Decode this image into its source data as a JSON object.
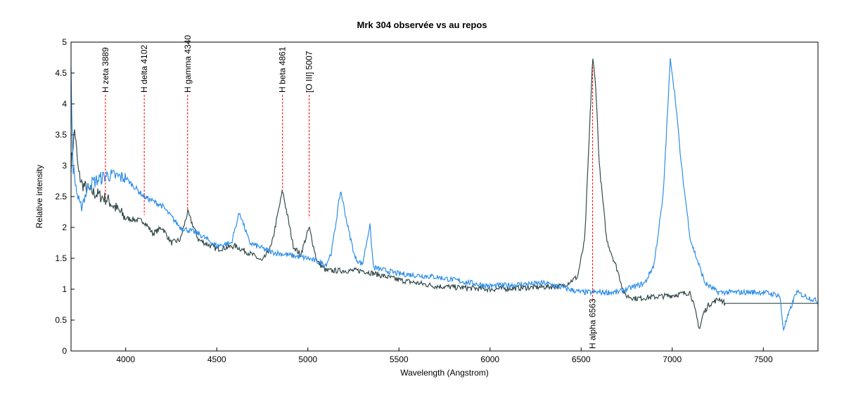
{
  "chart_data": {
    "type": "line",
    "title": "Mrk 304 observée vs au repos",
    "xlabel": "Wavelength (Angstrom)",
    "ylabel": "Relative intensity",
    "xlim": [
      3700,
      7800
    ],
    "ylim": [
      0,
      5
    ],
    "xticks": [
      4000,
      4500,
      5000,
      5500,
      6000,
      6500,
      7000,
      7500
    ],
    "yticks": [
      0,
      0.5,
      1,
      1.5,
      2,
      2.5,
      3,
      3.5,
      4,
      4.5,
      5
    ],
    "grid": false,
    "series": [
      {
        "color": "#354b4b",
        "x": [
          3700,
          3720,
          3740,
          3760,
          3800,
          3900,
          4000,
          4100,
          4150,
          4200,
          4250,
          4300,
          4340,
          4400,
          4500,
          4600,
          4700,
          4750,
          4800,
          4861,
          4920,
          4960,
          5007,
          5050,
          5100,
          5300,
          5500,
          5700,
          6000,
          6400,
          6480,
          6520,
          6545,
          6563,
          6580,
          6600,
          6640,
          6700,
          6740,
          6800,
          7000,
          7100,
          7130,
          7150,
          7170,
          7200,
          7260,
          7290,
          7800
        ],
        "y": [
          3.0,
          3.6,
          2.9,
          2.7,
          2.6,
          2.45,
          2.15,
          2.1,
          1.9,
          2.0,
          1.75,
          1.8,
          2.25,
          1.8,
          1.65,
          1.7,
          1.55,
          1.45,
          1.7,
          2.6,
          1.7,
          1.55,
          2.0,
          1.45,
          1.3,
          1.3,
          1.15,
          1.05,
          1.0,
          1.05,
          1.2,
          1.8,
          3.5,
          4.75,
          4.3,
          3.0,
          1.8,
          1.3,
          0.9,
          0.85,
          0.9,
          0.95,
          0.6,
          0.35,
          0.6,
          0.75,
          0.85,
          0.77,
          0.77
        ]
      },
      {
        "color": "#2e8ee8",
        "x": [
          3700,
          3710,
          3730,
          3750,
          3800,
          3900,
          4000,
          4100,
          4200,
          4300,
          4400,
          4500,
          4580,
          4625,
          4680,
          4800,
          4900,
          5000,
          5100,
          5130,
          5180,
          5220,
          5260,
          5300,
          5340,
          5360,
          5500,
          5700,
          6000,
          6300,
          6500,
          6700,
          6850,
          6900,
          6950,
          6990,
          7020,
          7050,
          7100,
          7180,
          7250,
          7500,
          7590,
          7610,
          7640,
          7680,
          7800
        ],
        "y": [
          4.5,
          3.0,
          2.6,
          2.3,
          2.7,
          2.85,
          2.8,
          2.5,
          2.35,
          2.0,
          1.9,
          1.7,
          1.75,
          2.25,
          1.75,
          1.6,
          1.55,
          1.5,
          1.4,
          1.6,
          2.6,
          2.0,
          1.5,
          1.4,
          2.05,
          1.35,
          1.25,
          1.2,
          1.05,
          1.1,
          0.95,
          0.95,
          1.1,
          1.4,
          2.5,
          4.75,
          4.0,
          3.0,
          1.8,
          1.1,
          0.95,
          0.95,
          0.9,
          0.35,
          0.6,
          0.95,
          0.8
        ]
      }
    ],
    "annotations": [
      {
        "label": "H zeta 3889",
        "x": 3889,
        "position": "top"
      },
      {
        "label": "H delta 4102",
        "x": 4102,
        "position": "top"
      },
      {
        "label": "H gamma 4340",
        "x": 4340,
        "position": "top"
      },
      {
        "label": "H beta 4861",
        "x": 4861,
        "position": "top"
      },
      {
        "label": "[O III] 5007",
        "x": 5007,
        "position": "top"
      },
      {
        "label": "H alpha 6563",
        "x": 6563,
        "position": "bottom"
      }
    ],
    "annotation_color": "#ff0000"
  }
}
